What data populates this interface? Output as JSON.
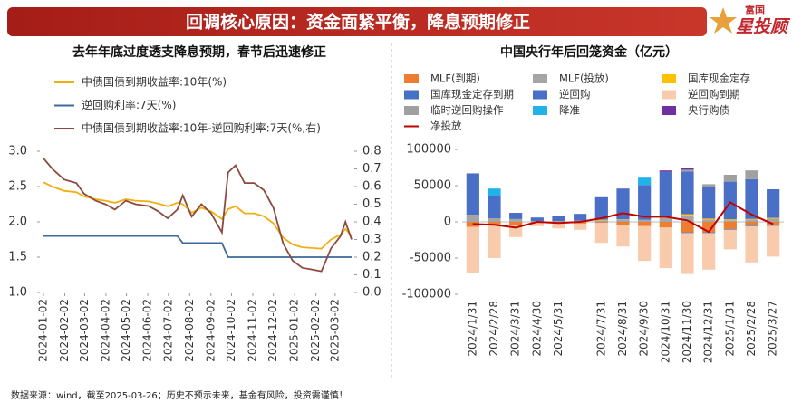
{
  "header": {
    "title": "回调核心原因：资金面紧平衡，降息预期修正",
    "logo_top": "富国",
    "logo": "星投顾"
  },
  "chart_data": [
    {
      "type": "line",
      "title": "去年年底过度透支降息预期，春节后迅速修正",
      "x": [
        "2024-01-02",
        "2024-01-15",
        "2024-02-01",
        "2024-02-19",
        "2024-03-01",
        "2024-03-18",
        "2024-04-01",
        "2024-04-15",
        "2024-05-01",
        "2024-05-15",
        "2024-06-03",
        "2024-06-17",
        "2024-07-01",
        "2024-07-15",
        "2024-07-23",
        "2024-08-05",
        "2024-08-19",
        "2024-09-02",
        "2024-09-18",
        "2024-09-27",
        "2024-10-08",
        "2024-10-21",
        "2024-11-04",
        "2024-11-18",
        "2024-12-02",
        "2024-12-16",
        "2024-12-30",
        "2025-01-13",
        "2025-01-27",
        "2025-02-10",
        "2025-02-24",
        "2025-03-10",
        "2025-03-17",
        "2025-03-26"
      ],
      "xlim": [
        "2024-01-02",
        "2025-03-26"
      ],
      "xticks": [
        "2024-01-02",
        "2024-02-02",
        "2024-03-02",
        "2024-04-02",
        "2024-05-02",
        "2024-06-02",
        "2024-07-02",
        "2024-08-02",
        "2024-09-02",
        "2024-10-02",
        "2024-11-02",
        "2024-12-02",
        "2025-01-02",
        "2025-02-02",
        "2025-03-02"
      ],
      "ylim": [
        1.0,
        3.0
      ],
      "yticks": [
        {
          "value": 1.0,
          "label": "1.0"
        },
        1.5,
        {
          "value": 2.0,
          "label": "2.0"
        },
        2.5,
        {
          "value": 3.0,
          "label": "3.0"
        }
      ],
      "y2lim": [
        0,
        0.8
      ],
      "y2ticks": [
        {
          "value": 0,
          "label": "0.0"
        },
        0.1,
        0.2,
        0.3,
        0.4,
        0.5,
        0.6,
        0.7,
        0.8
      ],
      "series": [
        {
          "name": "中债国债到期收益率:10年(%)",
          "color": "#f2ae0f",
          "values": [
            2.56,
            2.5,
            2.44,
            2.42,
            2.36,
            2.32,
            2.3,
            2.27,
            2.32,
            2.3,
            2.29,
            2.26,
            2.22,
            2.27,
            2.25,
            2.13,
            2.2,
            2.15,
            2.04,
            2.18,
            2.22,
            2.12,
            2.12,
            2.08,
            1.98,
            1.78,
            1.68,
            1.64,
            1.63,
            1.62,
            1.75,
            1.82,
            1.9,
            1.8
          ]
        },
        {
          "name": "逆回购利率:7天(%)",
          "color": "#3d6a99",
          "values": [
            1.8,
            1.8,
            1.8,
            1.8,
            1.8,
            1.8,
            1.8,
            1.8,
            1.8,
            1.8,
            1.8,
            1.8,
            1.8,
            1.8,
            1.7,
            1.7,
            1.7,
            1.7,
            1.7,
            1.5,
            1.5,
            1.5,
            1.5,
            1.5,
            1.5,
            1.5,
            1.5,
            1.5,
            1.5,
            1.5,
            1.5,
            1.5,
            1.5,
            1.5
          ]
        },
        {
          "name": "中债国债到期收益率:10年-逆回购利率:7天(%,右)",
          "color": "#8c4a3c",
          "axis": "y2",
          "values": [
            0.76,
            0.7,
            0.64,
            0.62,
            0.56,
            0.52,
            0.5,
            0.47,
            0.52,
            0.5,
            0.49,
            0.46,
            0.42,
            0.47,
            0.55,
            0.43,
            0.5,
            0.45,
            0.34,
            0.68,
            0.72,
            0.62,
            0.62,
            0.58,
            0.48,
            0.28,
            0.18,
            0.14,
            0.13,
            0.12,
            0.25,
            0.32,
            0.4,
            0.3
          ]
        }
      ]
    },
    {
      "type": "bar",
      "title": "中国央行年后回笼资金（亿元）",
      "categories": [
        "2024/1/31",
        "2024/2/28",
        "2024/3/31",
        "2024/4/30",
        "2024/5/31",
        null,
        "2024/7/31",
        "2024/8/31",
        "2024/9/30",
        "2024/10/31",
        "2024/11/30",
        "2024/12/31",
        "2025/1/31",
        "2025/2/28",
        "2025/3/27"
      ],
      "ylim": [
        -100000,
        100000
      ],
      "yticks": [
        -100000,
        -50000,
        0,
        50000,
        100000
      ],
      "series": [
        {
          "name": "MLF(到期)",
          "color": "#ed7d31",
          "values": [
            -7000,
            -5000,
            -4810,
            -1700,
            -1250,
            -2370,
            -1030,
            -4010,
            -5910,
            -7890,
            -14500,
            -14500,
            -9950,
            -5000,
            -4500
          ]
        },
        {
          "name": "MLF(投放)",
          "color": "#a5a5a5",
          "values": [
            9950,
            5000,
            3870,
            1000,
            1250,
            1820,
            2000,
            3000,
            3000,
            7000,
            9000,
            3000,
            2000,
            3000,
            4500
          ]
        },
        {
          "name": "国库现金定存",
          "color": "#ffc000",
          "values": [
            0,
            0,
            0,
            0,
            0,
            0,
            1000,
            500,
            0,
            0,
            1500,
            1500,
            1500,
            1000,
            1000
          ]
        },
        {
          "name": "国库现金定存到期",
          "color": "#4472c4",
          "values": [
            0,
            0,
            0,
            0,
            0,
            0,
            -500,
            -500,
            0,
            0,
            -1000,
            -1000,
            -1000,
            -1000,
            -1000
          ]
        },
        {
          "name": "逆回购",
          "color": "#4a6fc6",
          "values": [
            57000,
            31000,
            8600,
            5000,
            6300,
            9200,
            31000,
            42500,
            48000,
            62000,
            59000,
            44000,
            52000,
            55000,
            39500
          ]
        },
        {
          "name": "逆回购到期",
          "color": "#f8cbad",
          "values": [
            -63000,
            -45000,
            -16200,
            -4300,
            -7800,
            -8600,
            -27500,
            -29500,
            -48000,
            -56000,
            -56500,
            -50500,
            -27000,
            -50000,
            -42500
          ]
        },
        {
          "name": "临时逆回购操作",
          "color": "#a0a0a0",
          "values": [
            0,
            0,
            0,
            0,
            0,
            0,
            0,
            0,
            0,
            0,
            2500,
            3500,
            9500,
            12000,
            0
          ]
        },
        {
          "name": "降准",
          "color": "#1fb3ea",
          "values": [
            0,
            10000,
            0,
            0,
            0,
            0,
            0,
            0,
            10000,
            0,
            0,
            0,
            0,
            0,
            0
          ]
        },
        {
          "name": "央行购债",
          "color": "#7030a0",
          "values": [
            0,
            0,
            0,
            0,
            0,
            0,
            0,
            0,
            0,
            2000,
            2000,
            0,
            0,
            0,
            0
          ]
        },
        {
          "name": "净投放",
          "color": "#c00000",
          "type": "line",
          "values": [
            -3000,
            -4000,
            -8000,
            0,
            -1500,
            0,
            5000,
            12000,
            7000,
            7000,
            2000,
            -14000,
            27000,
            10000,
            -3000
          ]
        }
      ]
    }
  ],
  "footer": "数据来源：wind，截至2025-03-26；历史不预示未来，基金有风险，投资需谨慎！"
}
